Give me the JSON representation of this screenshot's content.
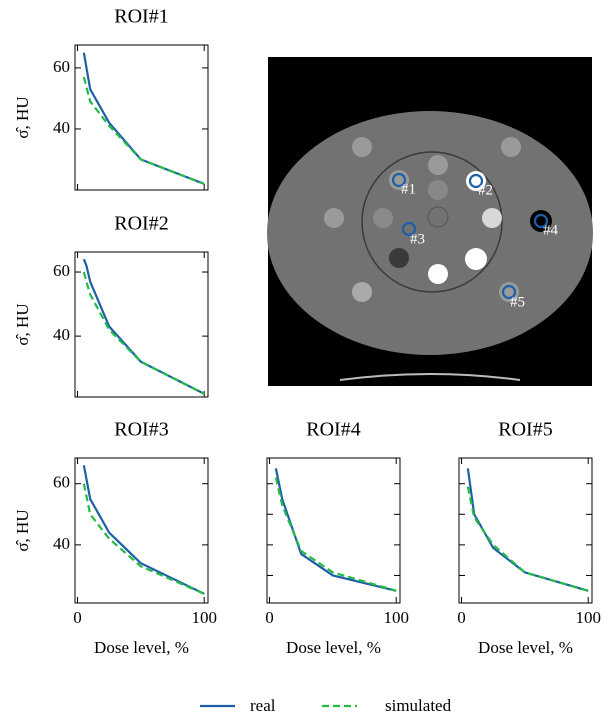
{
  "chart_data": [
    {
      "type": "line",
      "title": "ROI#1",
      "ylabel": "σ̂, HU",
      "x": [
        5,
        10,
        25,
        50,
        100
      ],
      "series": [
        {
          "name": "real",
          "color": "#1f5fa8",
          "dash": false,
          "values": [
            65,
            53,
            42,
            30,
            22
          ]
        },
        {
          "name": "simulated",
          "color": "#22bb44",
          "dash": true,
          "values": [
            57,
            49,
            41,
            30,
            22
          ]
        }
      ],
      "xlim": [
        -2,
        103
      ],
      "ylim": [
        20,
        67.5
      ],
      "xticks": [
        0,
        100
      ],
      "yticks": [
        40,
        60
      ],
      "show_xticklabels": false,
      "show_yticklabels": true
    },
    {
      "type": "line",
      "title": "ROI#2",
      "ylabel": "σ̂, HU",
      "x": [
        5,
        7,
        10,
        25,
        50,
        100
      ],
      "series": [
        {
          "color": "#1f5fa8",
          "dash": false,
          "values": [
            64,
            62,
            57,
            43,
            32,
            22
          ]
        },
        {
          "color": "#22bb44",
          "dash": true,
          "values": [
            60,
            57,
            53,
            42,
            32,
            22
          ]
        }
      ],
      "xlim": [
        -2,
        103
      ],
      "ylim": [
        21,
        66.25
      ],
      "xticks": [
        0,
        100
      ],
      "yticks": [
        40,
        60
      ],
      "show_xticklabels": false,
      "show_yticklabels": true
    },
    {
      "type": "line",
      "title": "ROI#3",
      "ylabel": "σ̂, HU",
      "xlabel": "Dose level, %",
      "x": [
        5,
        10,
        25,
        50,
        100
      ],
      "series": [
        {
          "color": "#1f5fa8",
          "dash": false,
          "values": [
            66,
            55,
            44,
            34,
            24
          ]
        },
        {
          "color": "#22bb44",
          "dash": true,
          "values": [
            60,
            50,
            42,
            33,
            24
          ]
        }
      ],
      "xlim": [
        -2,
        103
      ],
      "ylim": [
        21,
        68.4
      ],
      "xticks": [
        0,
        100
      ],
      "yticks": [
        40,
        60
      ],
      "show_xticklabels": true,
      "show_yticklabels": true
    },
    {
      "type": "line",
      "title": "ROI#4",
      "xlabel": "Dose level, %",
      "x": [
        5,
        10,
        25,
        50,
        100
      ],
      "series": [
        {
          "color": "#1f5fa8",
          "dash": false,
          "values": [
            65,
            55,
            37,
            30,
            25
          ]
        },
        {
          "color": "#22bb44",
          "dash": true,
          "values": [
            62,
            53,
            38,
            31,
            25
          ]
        }
      ],
      "xlim": [
        -2,
        103
      ],
      "ylim": [
        21,
        68.4
      ],
      "xticks": [
        0,
        100
      ],
      "yticks": [
        30,
        40,
        50,
        60
      ],
      "show_xticklabels": true,
      "show_yticklabels": false
    },
    {
      "type": "line",
      "title": "ROI#5",
      "xlabel": "Dose level, %",
      "x": [
        5,
        10,
        25,
        50,
        100
      ],
      "series": [
        {
          "color": "#1f5fa8",
          "dash": false,
          "values": [
            65,
            50,
            39,
            31,
            25
          ]
        },
        {
          "color": "#22bb44",
          "dash": true,
          "values": [
            59,
            49,
            40,
            31,
            25
          ]
        }
      ],
      "xlim": [
        -2,
        103
      ],
      "ylim": [
        21,
        68.4
      ],
      "xticks": [
        0,
        100
      ],
      "yticks": [
        30,
        40,
        50,
        60
      ],
      "show_xticklabels": true,
      "show_yticklabels": false
    }
  ],
  "image": {
    "labels": [
      "#1",
      "#2",
      "#3",
      "#4",
      "#5"
    ]
  }
}
